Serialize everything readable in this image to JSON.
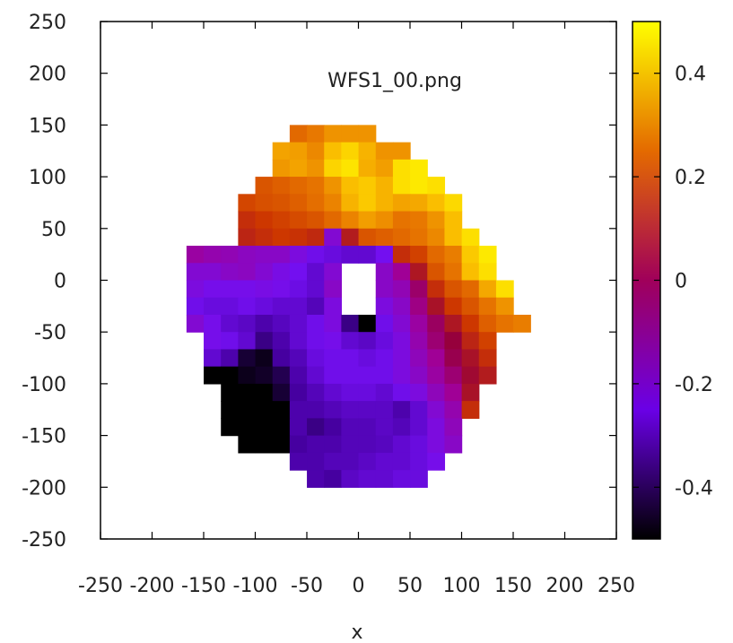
{
  "chart_data": {
    "type": "heatmap",
    "title": "WFS1_00.png",
    "xlabel": "x",
    "ylabel": "",
    "xlim": [
      -250,
      250
    ],
    "ylim": [
      -250,
      250
    ],
    "x_ticks": [
      "-250",
      "-200",
      "-150",
      "-100",
      "-50",
      "0",
      "50",
      "100",
      "150",
      "200",
      "250"
    ],
    "y_ticks": [
      "250",
      "200",
      "150",
      "100",
      "50",
      "0",
      "-50",
      "-100",
      "-150",
      "-200",
      "-250"
    ],
    "colorbar": {
      "range": [
        -0.5,
        0.5
      ],
      "ticks": [
        "0.4",
        "0.2",
        "0",
        "-0.2",
        "-0.4"
      ],
      "tick_values": [
        0.4,
        0.2,
        0,
        -0.2,
        -0.4
      ]
    },
    "grid": false,
    "cell_size": 16.67,
    "x_center_start": -158.3,
    "y_center_start": 141.7,
    "rows": [
      [
        null,
        null,
        null,
        null,
        null,
        null,
        0.22,
        0.25,
        0.3,
        0.3,
        0.3,
        null,
        null,
        null,
        null,
        null,
        null,
        null,
        null,
        null
      ],
      [
        null,
        null,
        null,
        null,
        null,
        0.33,
        0.32,
        0.28,
        0.38,
        0.42,
        0.36,
        0.3,
        0.3,
        null,
        null,
        null,
        null,
        null,
        null,
        null
      ],
      [
        null,
        null,
        null,
        null,
        null,
        0.31,
        0.33,
        0.3,
        0.42,
        0.45,
        0.35,
        0.32,
        0.44,
        0.46,
        null,
        null,
        null,
        null,
        null,
        null
      ],
      [
        null,
        null,
        null,
        null,
        0.18,
        0.2,
        0.22,
        0.24,
        0.3,
        0.38,
        0.4,
        0.36,
        0.44,
        0.46,
        0.44,
        null,
        null,
        null,
        null,
        null
      ],
      [
        null,
        null,
        null,
        0.15,
        0.17,
        0.18,
        0.2,
        0.23,
        0.27,
        0.36,
        0.4,
        0.36,
        0.33,
        0.34,
        0.38,
        0.43,
        null,
        null,
        null,
        null
      ],
      [
        null,
        null,
        null,
        0.1,
        0.12,
        0.14,
        0.16,
        0.18,
        0.22,
        0.27,
        0.32,
        0.29,
        0.24,
        0.25,
        0.3,
        0.38,
        null,
        null,
        null,
        null
      ],
      [
        null,
        null,
        null,
        0.08,
        0.1,
        0.12,
        0.11,
        0.09,
        -0.2,
        0.06,
        0.18,
        0.2,
        0.22,
        0.24,
        0.28,
        0.38,
        0.44,
        null,
        null,
        null
      ],
      [
        -0.12,
        -0.14,
        -0.15,
        -0.17,
        -0.18,
        -0.18,
        -0.22,
        -0.26,
        -0.28,
        -0.3,
        -0.3,
        -0.25,
        0.1,
        0.14,
        0.22,
        0.26,
        0.4,
        0.46,
        null,
        null
      ],
      [
        -0.2,
        -0.2,
        -0.18,
        -0.17,
        -0.2,
        -0.23,
        -0.25,
        -0.3,
        -0.2,
        null,
        null,
        -0.18,
        -0.1,
        0.05,
        0.18,
        0.24,
        0.38,
        0.44,
        null,
        null
      ],
      [
        -0.22,
        -0.24,
        -0.24,
        -0.24,
        -0.23,
        -0.24,
        -0.27,
        -0.3,
        -0.18,
        null,
        null,
        -0.18,
        -0.15,
        -0.05,
        0.1,
        0.18,
        0.22,
        0.34,
        0.44,
        null
      ],
      [
        -0.26,
        -0.28,
        -0.28,
        -0.26,
        -0.28,
        -0.3,
        -0.3,
        -0.34,
        -0.22,
        null,
        null,
        -0.22,
        -0.18,
        -0.08,
        0.04,
        0.12,
        0.18,
        0.24,
        0.3,
        null
      ],
      [
        -0.2,
        -0.24,
        -0.3,
        -0.32,
        -0.36,
        -0.33,
        -0.3,
        -0.26,
        -0.22,
        -0.4,
        -0.5,
        -0.26,
        -0.2,
        -0.12,
        -0.04,
        0.05,
        0.12,
        0.2,
        0.24,
        0.26
      ],
      [
        null,
        -0.24,
        -0.26,
        -0.3,
        -0.4,
        -0.36,
        -0.3,
        -0.26,
        -0.24,
        -0.3,
        -0.32,
        -0.28,
        -0.22,
        -0.14,
        -0.06,
        0.0,
        0.08,
        0.14,
        null,
        null
      ],
      [
        null,
        -0.3,
        -0.36,
        -0.46,
        -0.48,
        -0.38,
        -0.34,
        -0.28,
        -0.26,
        -0.26,
        -0.28,
        -0.26,
        -0.22,
        -0.16,
        -0.1,
        -0.02,
        0.04,
        0.1,
        null,
        null
      ],
      [
        null,
        -0.5,
        -0.5,
        -0.48,
        -0.47,
        -0.44,
        -0.36,
        -0.3,
        -0.26,
        -0.26,
        -0.26,
        -0.26,
        -0.22,
        -0.18,
        -0.12,
        -0.06,
        0.02,
        0.06,
        null,
        null
      ],
      [
        null,
        null,
        -0.5,
        -0.5,
        -0.5,
        -0.46,
        -0.38,
        -0.34,
        -0.3,
        -0.28,
        -0.28,
        -0.3,
        -0.26,
        -0.22,
        -0.16,
        -0.1,
        0.04,
        null,
        null,
        null
      ],
      [
        null,
        null,
        -0.5,
        -0.5,
        -0.5,
        -0.5,
        -0.36,
        -0.36,
        -0.34,
        -0.32,
        -0.32,
        -0.32,
        -0.36,
        -0.3,
        -0.2,
        -0.14,
        0.1,
        null,
        null,
        null
      ],
      [
        null,
        null,
        -0.5,
        -0.5,
        -0.5,
        -0.5,
        -0.36,
        -0.4,
        -0.38,
        -0.34,
        -0.34,
        -0.32,
        -0.34,
        -0.3,
        -0.22,
        -0.16,
        null,
        null,
        null,
        null
      ],
      [
        null,
        null,
        null,
        -0.5,
        -0.5,
        -0.5,
        -0.38,
        -0.36,
        -0.36,
        -0.34,
        -0.34,
        -0.33,
        -0.3,
        -0.28,
        -0.22,
        -0.18,
        null,
        null,
        null,
        null
      ],
      [
        null,
        null,
        null,
        null,
        null,
        null,
        -0.36,
        -0.36,
        -0.34,
        -0.34,
        -0.32,
        -0.3,
        -0.3,
        -0.28,
        -0.24,
        null,
        null,
        null,
        null,
        null
      ],
      [
        null,
        null,
        null,
        null,
        null,
        null,
        null,
        -0.36,
        -0.38,
        -0.32,
        -0.3,
        -0.3,
        -0.28,
        -0.28,
        null,
        null,
        null,
        null,
        null,
        null
      ]
    ]
  }
}
